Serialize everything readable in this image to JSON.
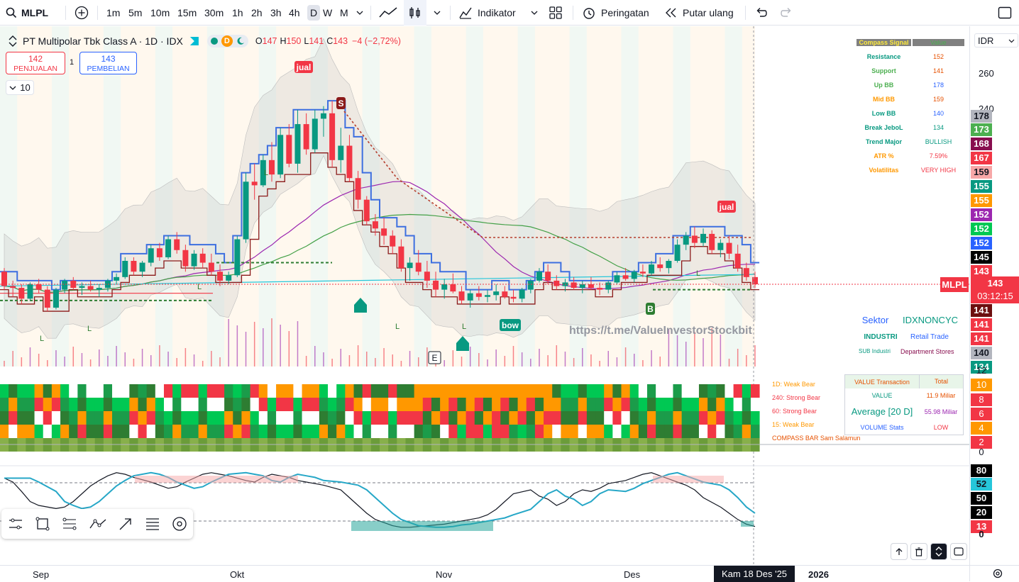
{
  "toolbar": {
    "symbol": "MLPL",
    "timeframes": [
      "1m",
      "5m",
      "10m",
      "15m",
      "30m",
      "1h",
      "2h",
      "3h",
      "4h",
      "D",
      "W",
      "M"
    ],
    "active_timeframe": "D",
    "indicators_label": "Indikator",
    "alert_label": "Peringatan",
    "replay_label": "Putar ulang"
  },
  "legend": {
    "title": "PT Multipolar Tbk Class A · 1D · IDX",
    "badge_d": "D",
    "o_label": "O",
    "o": "147",
    "h_label": "H",
    "h": "150",
    "l_label": "L",
    "l": "141",
    "c_label": "C",
    "c": "143",
    "change": "−4 (−2,72%)",
    "sell_price": "142",
    "sell_label": "PENJUALAN",
    "spread": "1",
    "buy_price": "143",
    "buy_label": "PEMBELIAN",
    "indicator_count": "10"
  },
  "compass_signal": {
    "header_left": "Compass Signal",
    "header_right": "Value",
    "rows": [
      {
        "label": "Resistance",
        "value": "152",
        "lc": "#089981",
        "vc": "#e65100"
      },
      {
        "label": "Support",
        "value": "141",
        "lc": "#4caf50",
        "vc": "#e65100"
      },
      {
        "label": "Up BB",
        "value": "178",
        "lc": "#4caf50",
        "vc": "#2962ff"
      },
      {
        "label": "Mid BB",
        "value": "159",
        "lc": "#ff9800",
        "vc": "#e65100"
      },
      {
        "label": "Low BB",
        "value": "140",
        "lc": "#089981",
        "vc": "#2962ff"
      },
      {
        "label": "Break JeboL",
        "value": "134",
        "lc": "#089981",
        "vc": "#089981"
      },
      {
        "label": "Trend Major",
        "value": "BULLISH",
        "lc": "#089981",
        "vc": "#089981"
      },
      {
        "label": "ATR %",
        "value": "7.59%",
        "lc": "#ff9800",
        "vc": "#f23645"
      },
      {
        "label": "Volatilitas",
        "value": "VERY HIGH",
        "lc": "#ff9800",
        "vc": "#f23645"
      }
    ]
  },
  "sector": {
    "sektor_label": "Sektor",
    "sektor_value": "IDXNONCYC",
    "industri_label": "INDUSTRI",
    "industri_value": "Retail Trade",
    "sub_label": "SUB Industri",
    "sub_value": "Department Stores"
  },
  "watermark": "https://t.me/ValueInvestorStockbit",
  "signals": {
    "jual": "jual",
    "s": "S",
    "bow": "bow",
    "b": "B",
    "e": "E",
    "l": "L"
  },
  "bar_labels": {
    "d1": "1D: Weak Bear",
    "m240": "240: Strong Bear",
    "m60": "60: Strong Bear",
    "m15": "15: Weak Bear",
    "compass": "COMPASS BAR Sam Salamun"
  },
  "value_transaction": {
    "header_left": "VALUE Transaction",
    "header_right": "Total",
    "value_label": "VALUE",
    "value": "11.9 Miliar",
    "avg_label": "Average [20 D]",
    "avg": "55.98 Miliar",
    "vol_label": "VOLUME Stats",
    "vol": "LOW"
  },
  "price_scale": {
    "currency": "IDR",
    "ticks": [
      {
        "label": "260",
        "y": 67
      },
      {
        "label": "240",
        "y": 117
      }
    ],
    "labels": [
      {
        "text": "178",
        "bg": "#b2b5be",
        "fg": "#131722",
        "y": 118
      },
      {
        "text": "173",
        "bg": "#4caf50",
        "fg": "#fff",
        "y": 137
      },
      {
        "text": "168",
        "bg": "#880e4f",
        "fg": "#fff",
        "y": 157
      },
      {
        "text": "167",
        "bg": "#f23645",
        "fg": "#fff",
        "y": 177
      },
      {
        "text": "159",
        "bg": "#f7a7a7",
        "fg": "#131722",
        "y": 197
      },
      {
        "text": "155",
        "bg": "#089981",
        "fg": "#fff",
        "y": 217
      },
      {
        "text": "155",
        "bg": "#ff9800",
        "fg": "#fff",
        "y": 237
      },
      {
        "text": "152",
        "bg": "#9c27b0",
        "fg": "#fff",
        "y": 257
      },
      {
        "text": "152",
        "bg": "#00c853",
        "fg": "#fff",
        "y": 277
      },
      {
        "text": "152",
        "bg": "#2962ff",
        "fg": "#fff",
        "y": 297
      },
      {
        "text": "145",
        "bg": "#000000",
        "fg": "#fff",
        "y": 317
      },
      {
        "text": "143",
        "bg": "#f23645",
        "fg": "#fff",
        "y": 337
      },
      {
        "text": "141",
        "bg": "#6d0f0f",
        "fg": "#fff",
        "y": 392
      },
      {
        "text": "141",
        "bg": "#f23645",
        "fg": "#fff",
        "y": 412
      },
      {
        "text": "141",
        "bg": "#f23645",
        "fg": "#fff",
        "y": 432
      },
      {
        "text": "140",
        "bg": "#b2b5be",
        "fg": "#131722",
        "y": 452
      },
      {
        "text": "134",
        "bg": "#089981",
        "fg": "#fff",
        "y": 472
      }
    ],
    "current_price": "143",
    "countdown": "03:12:15",
    "symbol_tag": "MLPL",
    "bar_ticks": [
      "12",
      "10",
      "8",
      "6",
      "4",
      "2",
      "0"
    ],
    "osc_ticks": [
      {
        "text": "80",
        "bg": "#000",
        "fg": "#fff"
      },
      {
        "text": "52",
        "bg": "#26c6da",
        "fg": "#131722"
      },
      {
        "text": "50",
        "bg": "#000",
        "fg": "#fff"
      },
      {
        "text": "20",
        "bg": "#000",
        "fg": "#fff"
      },
      {
        "text": "13",
        "bg": "#f23645",
        "fg": "#fff"
      },
      {
        "text": "0",
        "bg": "none",
        "fg": "#131722"
      }
    ]
  },
  "time_axis": {
    "labels": [
      "Sep",
      "Okt",
      "Nov",
      "Des",
      "2026"
    ],
    "cursor_date": "Kam 18 Des '25"
  },
  "chart_data": {
    "type": "candlestick",
    "symbol": "MLPL",
    "interval": "1D",
    "last": {
      "open": 147,
      "high": 150,
      "low": 141,
      "close": 143
    },
    "x_axis_labels": [
      "Sep",
      "Okt",
      "Nov",
      "Des",
      "2026"
    ],
    "candles": [
      [
        150,
        152,
        140,
        142
      ],
      [
        142,
        145,
        136,
        141
      ],
      [
        141,
        143,
        132,
        135
      ],
      [
        135,
        144,
        134,
        143
      ],
      [
        143,
        146,
        138,
        140
      ],
      [
        140,
        142,
        128,
        130
      ],
      [
        130,
        141,
        129,
        140
      ],
      [
        140,
        146,
        138,
        145
      ],
      [
        145,
        147,
        140,
        141
      ],
      [
        141,
        144,
        137,
        142
      ],
      [
        142,
        145,
        139,
        140
      ],
      [
        140,
        143,
        136,
        141
      ],
      [
        141,
        146,
        139,
        145
      ],
      [
        145,
        149,
        143,
        147
      ],
      [
        147,
        158,
        146,
        156
      ],
      [
        156,
        158,
        148,
        150
      ],
      [
        150,
        156,
        147,
        155
      ],
      [
        155,
        165,
        153,
        163
      ],
      [
        163,
        166,
        156,
        158
      ],
      [
        158,
        170,
        157,
        168
      ],
      [
        168,
        172,
        160,
        162
      ],
      [
        162,
        165,
        150,
        153
      ],
      [
        153,
        162,
        151,
        160
      ],
      [
        160,
        163,
        152,
        155
      ],
      [
        155,
        160,
        148,
        150
      ],
      [
        150,
        154,
        142,
        145
      ],
      [
        145,
        150,
        143,
        148
      ],
      [
        148,
        170,
        147,
        168
      ],
      [
        168,
        205,
        166,
        200
      ],
      [
        200,
        210,
        190,
        198
      ],
      [
        198,
        215,
        197,
        212
      ],
      [
        212,
        222,
        200,
        204
      ],
      [
        204,
        230,
        202,
        226
      ],
      [
        226,
        232,
        208,
        210
      ],
      [
        210,
        240,
        205,
        232
      ],
      [
        232,
        238,
        215,
        218
      ],
      [
        218,
        240,
        216,
        235
      ],
      [
        235,
        242,
        225,
        238
      ],
      [
        238,
        245,
        208,
        212
      ],
      [
        212,
        230,
        205,
        220
      ],
      [
        220,
        226,
        200,
        202
      ],
      [
        202,
        206,
        185,
        190
      ],
      [
        190,
        192,
        176,
        178
      ],
      [
        178,
        182,
        170,
        174
      ],
      [
        174,
        180,
        165,
        170
      ],
      [
        170,
        173,
        160,
        164
      ],
      [
        164,
        168,
        150,
        152
      ],
      [
        152,
        158,
        145,
        155
      ],
      [
        155,
        162,
        148,
        150
      ],
      [
        150,
        156,
        141,
        145
      ],
      [
        145,
        150,
        136,
        140
      ],
      [
        140,
        146,
        135,
        143
      ],
      [
        143,
        149,
        138,
        139
      ],
      [
        139,
        142,
        132,
        134
      ],
      [
        134,
        140,
        130,
        138
      ],
      [
        138,
        142,
        134,
        136
      ],
      [
        136,
        140,
        133,
        137
      ],
      [
        137,
        143,
        134,
        139
      ],
      [
        139,
        142,
        135,
        136
      ],
      [
        136,
        140,
        133,
        135
      ],
      [
        135,
        141,
        133,
        140
      ],
      [
        140,
        146,
        138,
        145
      ],
      [
        145,
        152,
        144,
        150
      ],
      [
        150,
        154,
        143,
        145
      ],
      [
        145,
        148,
        140,
        142
      ],
      [
        142,
        146,
        139,
        144
      ],
      [
        144,
        147,
        140,
        141
      ],
      [
        141,
        145,
        138,
        143
      ],
      [
        143,
        147,
        140,
        141
      ],
      [
        141,
        144,
        137,
        140
      ],
      [
        140,
        145,
        138,
        144
      ],
      [
        144,
        150,
        143,
        148
      ],
      [
        148,
        152,
        145,
        146
      ],
      [
        146,
        151,
        144,
        150
      ],
      [
        150,
        154,
        147,
        149
      ],
      [
        149,
        156,
        148,
        154
      ],
      [
        154,
        158,
        150,
        152
      ],
      [
        152,
        157,
        149,
        156
      ],
      [
        156,
        168,
        155,
        165
      ],
      [
        165,
        172,
        162,
        170
      ],
      [
        170,
        175,
        163,
        166
      ],
      [
        166,
        174,
        164,
        171
      ],
      [
        171,
        173,
        160,
        162
      ],
      [
        162,
        168,
        158,
        166
      ],
      [
        166,
        170,
        157,
        160
      ],
      [
        160,
        165,
        150,
        152
      ],
      [
        152,
        155,
        145,
        147
      ],
      [
        147,
        150,
        141,
        143
      ]
    ]
  }
}
